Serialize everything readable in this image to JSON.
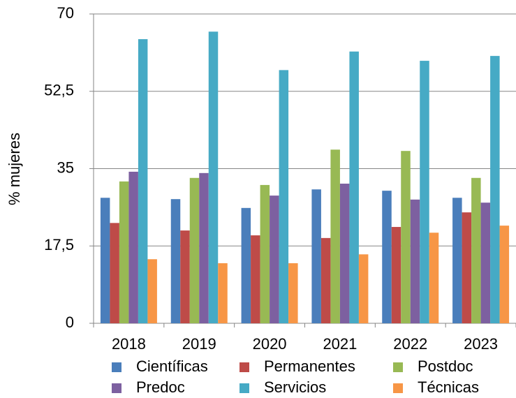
{
  "chart_data": {
    "type": "bar",
    "y_label": "% mujeres",
    "categories": [
      "2018",
      "2019",
      "2020",
      "2021",
      "2022",
      "2023"
    ],
    "series": [
      {
        "name": "Científicas",
        "color": "#4a7ebb",
        "values": [
          28.4,
          28.1,
          26.1,
          30.3,
          30.0,
          28.4
        ]
      },
      {
        "name": "Permanentes",
        "color": "#be4b48",
        "values": [
          22.7,
          21.0,
          19.9,
          19.3,
          21.8,
          25.1
        ]
      },
      {
        "name": "Postdoc",
        "color": "#98b954",
        "values": [
          32.1,
          32.9,
          31.3,
          39.3,
          39.0,
          32.9
        ]
      },
      {
        "name": "Predoc",
        "color": "#7d60a0",
        "values": [
          34.3,
          34.0,
          28.9,
          31.6,
          28.0,
          27.3
        ]
      },
      {
        "name": "Servicios",
        "color": "#46aac5",
        "values": [
          64.3,
          66.0,
          57.3,
          61.5,
          59.4,
          60.5
        ]
      },
      {
        "name": "Técnicas",
        "color": "#f79646",
        "values": [
          14.5,
          13.6,
          13.6,
          15.6,
          20.5,
          22.1
        ]
      }
    ],
    "ylim": [
      0,
      70
    ],
    "yticks": [
      0,
      {
        "value": 17.5,
        "label": "17,5"
      },
      35,
      {
        "value": 52.5,
        "label": "52,5"
      },
      70
    ],
    "grid": true
  }
}
